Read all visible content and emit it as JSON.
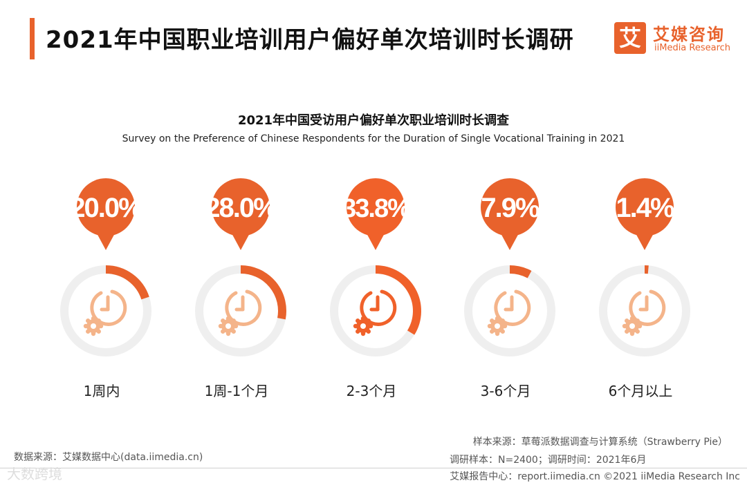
{
  "header": {
    "title": "2021年中国职业培训用户偏好单次培训时长调研",
    "logo_mark": "艾",
    "logo_cn": "艾媒咨询",
    "logo_en": "iiMedia Research"
  },
  "colors": {
    "accent": "#e8622c",
    "highlight": "#f0612a",
    "ring_bg": "#efefef",
    "icon_light": "#f4b48a"
  },
  "chart_data": {
    "type": "pie",
    "title": "2021年中国受访用户偏好单次职业培训时长调查",
    "subtitle": "Survey on the Preference of Chinese Respondents for the Duration of Single Vocational Training in 2021",
    "unit": "%",
    "categories": [
      "1周内",
      "1周-1个月",
      "2-3个月",
      "3-6个月",
      "6个月以上"
    ],
    "values": [
      20.0,
      28.0,
      33.8,
      7.9,
      1.4
    ],
    "labels": [
      "20.0%",
      "28.0%",
      "33.8%",
      "7.9%",
      "1.4%"
    ],
    "highlight_index": 2
  },
  "footer": {
    "source": "数据来源：艾媒数据中心(data.iimedia.cn)",
    "sample_source": "样本来源：草莓派数据调查与计算系统（Strawberry Pie）",
    "sample_info": "调研样本：N=2400；调研时间：2021年6月",
    "report": "艾媒报告中心：report.iimedia.cn  ©2021  iiMedia Research  Inc",
    "watermark": "大数跨境"
  }
}
